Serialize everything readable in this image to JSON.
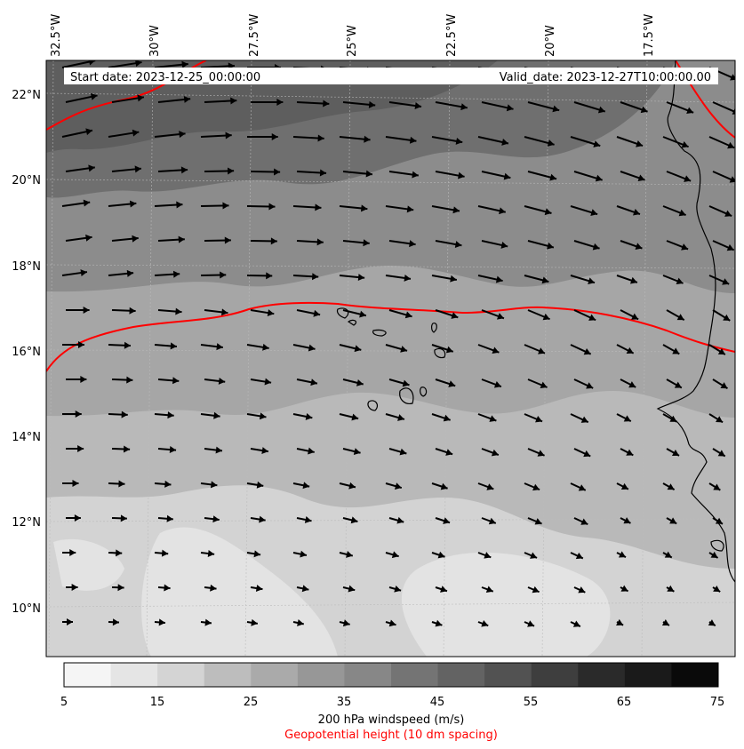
{
  "map": {
    "start_date": "Start date: 2023-12-25_00:00:00",
    "valid_date": "Valid_date: 2023-12-27T10:00:00.00",
    "lon_labels": [
      "32.5°W",
      "30°W",
      "27.5°W",
      "25°W",
      "22.5°W",
      "20°W",
      "17.5°W"
    ],
    "lat_labels": [
      "22°N",
      "20°N",
      "18°N",
      "16°N",
      "14°N",
      "12°N",
      "10°N"
    ],
    "colors": {
      "contour_line": "#ff0000",
      "coastline": "#000000",
      "wind_arrow": "#000000"
    }
  },
  "colorbar": {
    "tick_labels": [
      "5",
      "15",
      "25",
      "35",
      "45",
      "55",
      "65",
      "75"
    ],
    "colors": [
      "#f5f5f5",
      "#e5e5e5",
      "#d4d4d4",
      "#bdbdbd",
      "#aaaaaa",
      "#979797",
      "#878787",
      "#747474",
      "#636363",
      "#525252",
      "#3e3e3e",
      "#2a2a2a",
      "#1a1a1a",
      "#0a0a0a"
    ],
    "label": "200 hPa windspeed (m/s)",
    "sublabel": "Geopotential height (10 dm spacing)",
    "sublabel_color": "#ff0000"
  }
}
